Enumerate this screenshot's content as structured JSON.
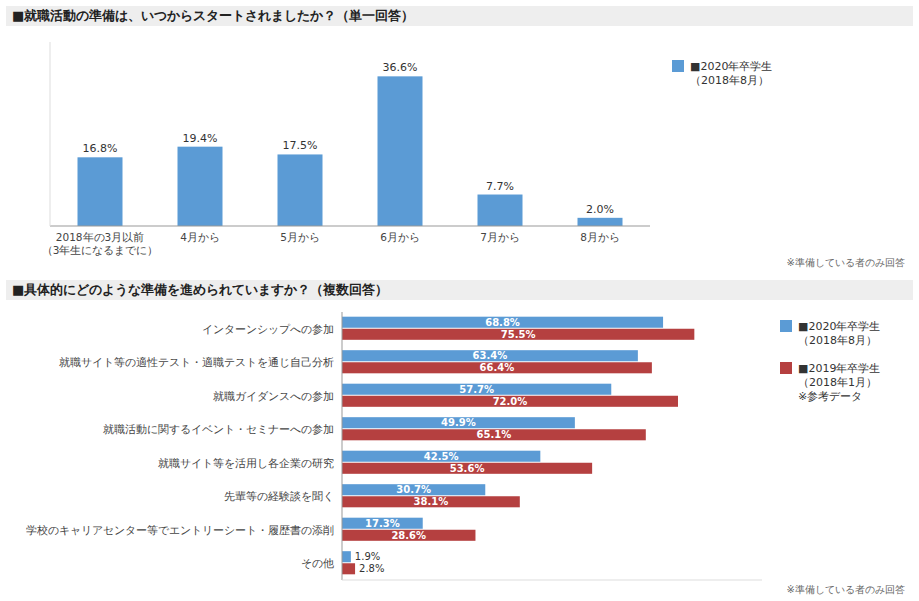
{
  "chart_data": [
    {
      "type": "bar",
      "title": "■就職活動の準備は、いつからスタートされましたか？（単一回答）",
      "categories": [
        "2018年の3月以前\n（3年生になるまでに）",
        "4月から",
        "5月から",
        "6月から",
        "7月から",
        "8月から"
      ],
      "series": [
        {
          "name": "■2020年卒学生\n（2018年8月）",
          "color": "#5b9bd5",
          "values": [
            16.8,
            19.4,
            17.5,
            36.6,
            7.7,
            2.0
          ],
          "value_labels": [
            "16.8%",
            "19.4%",
            "17.5%",
            "36.6%",
            "7.7%",
            "2.0%"
          ]
        }
      ],
      "ylim": [
        0,
        45
      ],
      "tick_labels": "x",
      "data_labels": true,
      "legend": "right",
      "annotations": [
        "※準備している者のみ回答"
      ]
    },
    {
      "type": "bar",
      "orientation": "horizontal",
      "title": "■具体的にどのような準備を進められていますか？（複数回答）",
      "categories": [
        "インターンシップへの参加",
        "就職サイト等の適性テスト・適職テストを通じ自己分析",
        "就職ガイダンスへの参加",
        "就職活動に関するイベント・セミナーへの参加",
        "就職サイト等を活用し各企業の研究",
        "先輩等の経験談を聞く",
        "学校のキャリアセンター等でエントリーシート・履歴書の添削",
        "その他"
      ],
      "series": [
        {
          "name": "■2020年卒学生\n（2018年8月）",
          "color": "#5b9bd5",
          "values": [
            68.8,
            63.4,
            57.7,
            49.9,
            42.5,
            30.7,
            17.3,
            1.9
          ],
          "value_labels": [
            "68.8%",
            "63.4%",
            "57.7%",
            "49.9%",
            "42.5%",
            "30.7%",
            "17.3%",
            "1.9%"
          ]
        },
        {
          "name": "■2019年卒学生\n（2018年1月）\n※参考データ",
          "color": "#b54040",
          "values": [
            75.5,
            66.4,
            72.0,
            65.1,
            53.6,
            38.1,
            28.6,
            2.8
          ],
          "value_labels": [
            "75.5%",
            "66.4%",
            "72.0%",
            "65.1%",
            "53.6%",
            "38.1%",
            "28.6%",
            "2.8%"
          ]
        }
      ],
      "xlim": [
        0,
        90
      ],
      "tick_labels": "y",
      "data_labels": true,
      "legend": "right",
      "annotations": [
        "※準備している者のみ回答"
      ]
    }
  ]
}
